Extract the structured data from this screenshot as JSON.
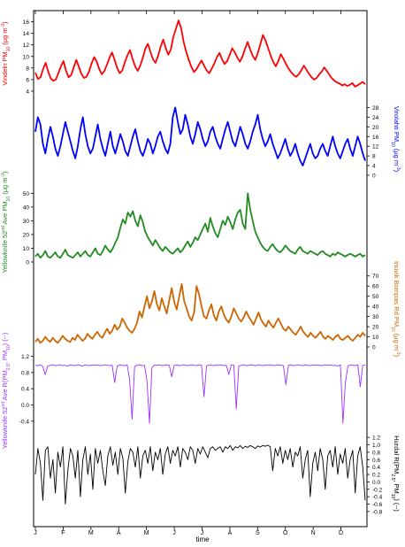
{
  "chart_data": {
    "type": "line",
    "x_axis": {
      "label": "time",
      "months": [
        "J",
        "F",
        "M",
        "A",
        "M",
        "J",
        "J",
        "A",
        "S",
        "O",
        "N",
        "D"
      ]
    },
    "panels": [
      {
        "id": "vindeln-pm10",
        "label": "Vindeln PM10 (μg m⁻³)",
        "label_parts": [
          "Vindeln PM",
          "10",
          " (μg m",
          "-3",
          ")"
        ],
        "side": "left",
        "color": "#ff0000",
        "ylim": [
          4,
          17
        ],
        "ticks": [
          4,
          6,
          8,
          10,
          12,
          14,
          16
        ],
        "values": [
          7.2,
          6.1,
          6.4,
          7.8,
          8.9,
          7.4,
          6.2,
          5.8,
          6.0,
          7.1,
          8.3,
          9.2,
          7.5,
          6.4,
          6.8,
          8.1,
          9.4,
          8.2,
          7.0,
          6.3,
          6.5,
          7.4,
          8.8,
          9.9,
          9.1,
          7.8,
          6.9,
          7.5,
          8.6,
          9.8,
          10.7,
          9.4,
          8.0,
          7.1,
          7.6,
          9.0,
          10.2,
          11.1,
          9.6,
          8.3,
          7.5,
          8.4,
          9.7,
          11.3,
          12.2,
          10.8,
          9.5,
          8.9,
          10.1,
          11.7,
          12.9,
          11.4,
          10.3,
          11.2,
          13.4,
          14.8,
          16.2,
          14.9,
          12.5,
          10.8,
          9.4,
          8.2,
          7.3,
          7.8,
          8.6,
          9.3,
          8.4,
          7.6,
          7.1,
          7.9,
          8.8,
          9.9,
          10.6,
          9.5,
          8.7,
          9.2,
          10.3,
          11.4,
          10.7,
          9.8,
          9.1,
          10.0,
          11.3,
          12.5,
          11.2,
          10.1,
          9.4,
          10.6,
          12.1,
          13.7,
          12.8,
          11.5,
          10.2,
          9.1,
          8.3,
          9.2,
          10.4,
          9.6,
          8.7,
          7.9,
          7.3,
          6.8,
          6.5,
          6.9,
          7.6,
          8.4,
          7.7,
          7.0,
          6.4,
          6.0,
          6.3,
          6.9,
          7.4,
          8.1,
          7.5,
          6.8,
          6.2,
          5.8,
          5.5,
          5.3,
          5.0,
          5.2,
          4.9,
          5.1,
          5.4,
          4.8,
          5.0,
          5.3,
          5.6,
          5.2
        ]
      },
      {
        "id": "virolahti-pm10",
        "label": "Virolahti PM10 (μg m⁻³)",
        "label_parts": [
          "Virolahti PM",
          "10",
          " (μg m",
          "-3",
          ")"
        ],
        "side": "right",
        "color": "#0000ff",
        "ylim": [
          0,
          30
        ],
        "ticks": [
          0,
          4,
          8,
          12,
          16,
          20,
          24,
          28
        ],
        "values": [
          18,
          24,
          21,
          13,
          9,
          15,
          20,
          16,
          11,
          8,
          12,
          17,
          22,
          18,
          14,
          10,
          7,
          12,
          19,
          24,
          17,
          12,
          9,
          11,
          16,
          21,
          15,
          11,
          8,
          13,
          18,
          12,
          9,
          13,
          17,
          14,
          10,
          8,
          12,
          16,
          19,
          14,
          10,
          8,
          11,
          15,
          13,
          9,
          12,
          16,
          18,
          14,
          11,
          9,
          13,
          24,
          28,
          22,
          17,
          19,
          25,
          21,
          16,
          13,
          17,
          22,
          19,
          15,
          12,
          14,
          18,
          20,
          16,
          13,
          11,
          15,
          19,
          22,
          18,
          14,
          12,
          16,
          20,
          17,
          13,
          11,
          14,
          18,
          21,
          25,
          19,
          15,
          12,
          14,
          17,
          13,
          10,
          7,
          9,
          12,
          15,
          11,
          8,
          10,
          13,
          9,
          6,
          4,
          7,
          10,
          13,
          9,
          7,
          8,
          11,
          13,
          10,
          8,
          12,
          16,
          12,
          9,
          7,
          10,
          13,
          15,
          11,
          8,
          12,
          16,
          13,
          9,
          6
        ]
      },
      {
        "id": "yellowknife-pm10",
        "label": "Yellowknife 52nd Ave PM10 (μg m⁻³)",
        "label_parts": [
          "Yellowknife 52",
          "nd",
          " Ave PM",
          "10",
          " (μg m",
          "-3",
          ")"
        ],
        "side": "left",
        "color": "#228b22",
        "ylim": [
          0,
          58
        ],
        "ticks": [
          0,
          10,
          20,
          30,
          40,
          50
        ],
        "values": [
          4,
          6,
          3,
          5,
          8,
          4,
          3,
          5,
          7,
          4,
          3,
          6,
          9,
          5,
          4,
          3,
          5,
          7,
          4,
          6,
          8,
          5,
          4,
          7,
          10,
          6,
          5,
          8,
          12,
          9,
          7,
          10,
          14,
          18,
          25,
          31,
          28,
          36,
          33,
          37,
          30,
          26,
          34,
          29,
          22,
          18,
          15,
          12,
          16,
          13,
          10,
          8,
          11,
          9,
          7,
          6,
          8,
          10,
          7,
          9,
          12,
          15,
          11,
          14,
          18,
          16,
          20,
          24,
          28,
          22,
          32,
          26,
          21,
          18,
          24,
          30,
          27,
          33,
          29,
          24,
          31,
          36,
          38,
          28,
          24,
          50,
          38,
          30,
          22,
          18,
          14,
          11,
          9,
          8,
          11,
          13,
          10,
          8,
          7,
          9,
          12,
          10,
          8,
          7,
          6,
          9,
          11,
          8,
          7,
          6,
          8,
          7,
          6,
          5,
          7,
          8,
          6,
          5,
          4,
          6,
          5,
          7,
          6,
          5,
          4,
          5,
          6,
          5,
          4,
          5,
          6,
          4,
          5
        ]
      },
      {
        "id": "inuvik-pm10",
        "label": "Inuvik Bompas Rd PM10 (μg m⁻³)",
        "label_parts": [
          "Inuvik Bompas Rd PM",
          "10",
          " (μg m",
          "-3",
          ")"
        ],
        "side": "right",
        "color": "#cc6600",
        "ylim": [
          0,
          75
        ],
        "ticks": [
          0,
          10,
          20,
          30,
          40,
          50,
          60,
          70
        ],
        "values": [
          5,
          8,
          4,
          6,
          10,
          7,
          5,
          9,
          6,
          4,
          7,
          11,
          8,
          6,
          5,
          9,
          7,
          12,
          9,
          6,
          8,
          13,
          10,
          8,
          12,
          15,
          11,
          9,
          14,
          18,
          13,
          16,
          22,
          17,
          20,
          28,
          24,
          19,
          16,
          14,
          18,
          24,
          35,
          29,
          40,
          50,
          38,
          45,
          55,
          42,
          36,
          48,
          40,
          33,
          46,
          58,
          44,
          37,
          50,
          62,
          45,
          38,
          30,
          26,
          34,
          60,
          52,
          40,
          30,
          28,
          36,
          42,
          31,
          26,
          35,
          40,
          32,
          27,
          24,
          30,
          38,
          33,
          28,
          25,
          29,
          35,
          30,
          26,
          22,
          28,
          34,
          27,
          23,
          20,
          26,
          22,
          19,
          24,
          28,
          23,
          18,
          16,
          20,
          17,
          14,
          12,
          16,
          20,
          15,
          12,
          10,
          14,
          11,
          9,
          12,
          15,
          10,
          8,
          11,
          9,
          7,
          10,
          12,
          8,
          7,
          9,
          11,
          8,
          6,
          9,
          12,
          10,
          14,
          11
        ]
      },
      {
        "id": "yellowknife-ratio",
        "label": "Yellowknife 52nd Ave R(PM2.5, PM10) (--)",
        "label_parts": [
          "Yellowknife 52",
          "nd",
          " Ave R(PM",
          "2.5",
          ", PM",
          "10",
          ") (--)"
        ],
        "side": "left",
        "color": "#9933ff",
        "ylim": [
          -0.6,
          1.3
        ],
        "ticks": [
          -0.4,
          0.0,
          0.4,
          0.8,
          1.2
        ],
        "values": [
          0.98,
          0.97,
          0.99,
          0.95,
          0.75,
          0.96,
          0.98,
          0.99,
          0.97,
          0.98,
          0.99,
          0.97,
          0.98,
          0.96,
          0.99,
          0.98,
          0.97,
          0.99,
          0.98,
          0.96,
          0.99,
          0.98,
          0.97,
          0.99,
          0.98,
          0.99,
          0.97,
          0.98,
          0.99,
          0.98,
          0.97,
          0.98,
          0.55,
          0.96,
          0.99,
          0.98,
          0.97,
          0.99,
          0.62,
          -0.35,
          0.95,
          0.98,
          0.99,
          0.97,
          0.98,
          0.6,
          -0.45,
          0.92,
          0.99,
          0.98,
          0.99,
          0.97,
          0.98,
          0.99,
          0.98,
          0.7,
          0.98,
          0.99,
          0.97,
          0.98,
          0.99,
          0.97,
          0.98,
          0.99,
          0.98,
          0.97,
          0.99,
          0.98,
          0.2,
          0.96,
          0.99,
          0.98,
          0.97,
          0.99,
          0.98,
          0.99,
          0.97,
          0.98,
          0.75,
          0.99,
          0.98,
          -0.1,
          0.96,
          0.98,
          0.99,
          0.97,
          0.98,
          0.99,
          0.98,
          0.97,
          0.99,
          0.98,
          0.97,
          0.99,
          0.98,
          0.99,
          0.97,
          0.98,
          0.99,
          0.98,
          0.97,
          0.5,
          0.98,
          0.99,
          0.97,
          0.98,
          0.99,
          0.98,
          0.97,
          0.99,
          0.98,
          0.97,
          0.99,
          0.98,
          0.99,
          0.97,
          0.98,
          0.99,
          0.98,
          0.99,
          0.97,
          0.98,
          0.96,
          0.99,
          -0.45,
          0.55,
          0.96,
          0.99,
          0.98,
          0.97,
          0.99,
          0.45,
          0.98,
          0.99
        ]
      },
      {
        "id": "hurdal-ratio",
        "label": "Hurdal R(PM2.5, PM10) (--)",
        "label_parts": [
          "Hurdal R(PM",
          "2.5",
          ", PM",
          "10",
          ") (--)"
        ],
        "side": "right",
        "color": "#000000",
        "ylim": [
          -0.85,
          1.3
        ],
        "ticks": [
          -0.8,
          -0.6,
          -0.4,
          -0.2,
          0.0,
          0.2,
          0.4,
          0.6,
          0.8,
          1.0,
          1.2
        ],
        "values": [
          0.2,
          0.9,
          0.5,
          -0.5,
          0.85,
          0.95,
          0.1,
          0.6,
          -0.3,
          0.8,
          0.4,
          0.95,
          -0.6,
          0.3,
          0.9,
          0.7,
          0.1,
          0.85,
          -0.4,
          0.6,
          0.95,
          0.2,
          0.75,
          -0.2,
          0.9,
          0.5,
          0.85,
          0.3,
          -0.1,
          0.7,
          0.95,
          0.45,
          0.8,
          0.2,
          0.9,
          0.65,
          -0.3,
          0.55,
          0.9,
          0.8,
          0.4,
          0.95,
          0.1,
          0.7,
          0.85,
          0.5,
          0.95,
          0.3,
          0.8,
          0.6,
          0.9,
          0.2,
          0.75,
          0.95,
          0.5,
          0.85,
          0.7,
          0.95,
          0.4,
          0.9,
          0.8,
          0.6,
          0.95,
          0.85,
          0.5,
          0.9,
          0.75,
          0.95,
          0.8,
          0.65,
          0.9,
          0.95,
          0.85,
          0.9,
          0.95,
          0.8,
          0.95,
          0.9,
          0.98,
          0.85,
          0.95,
          0.92,
          0.98,
          0.9,
          0.96,
          0.93,
          0.98,
          0.95,
          0.9,
          0.97,
          0.94,
          0.98,
          0.96,
          0.99,
          0.95,
          0.3,
          0.9,
          0.7,
          0.95,
          0.5,
          0.85,
          0.6,
          0.9,
          0.4,
          0.8,
          0.7,
          0.95,
          0.1,
          0.6,
          0.85,
          -0.4,
          0.5,
          0.8,
          0.3,
          0.9,
          0.6,
          -0.2,
          0.7,
          0.85,
          0.4,
          0.95,
          0.2,
          0.75,
          0.5,
          0.9,
          0.1,
          0.6,
          0.85,
          -0.3,
          0.7,
          0.95,
          0.4,
          -0.5
        ]
      }
    ]
  }
}
